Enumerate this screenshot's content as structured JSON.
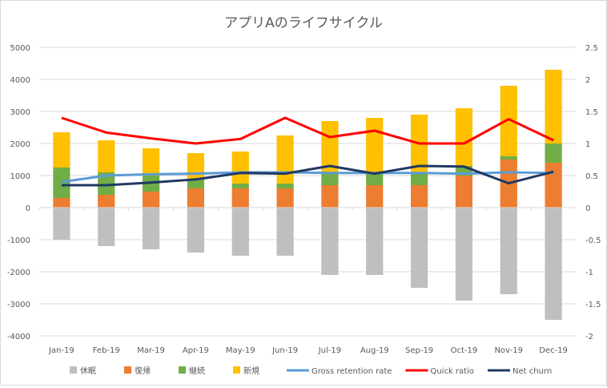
{
  "chart_data": {
    "type": "bar",
    "title": "アプリAのライフサイクル",
    "categories": [
      "Jan-19",
      "Feb-19",
      "Mar-19",
      "Apr-19",
      "May-19",
      "Jun-19",
      "Jul-19",
      "Aug-19",
      "Sep-19",
      "Oct-19",
      "Nov-19",
      "Dec-19"
    ],
    "ylim": [
      -4000,
      5000
    ],
    "yticks": [
      -4000,
      -3000,
      -2000,
      -1000,
      0,
      1000,
      2000,
      3000,
      4000,
      5000
    ],
    "y2lim": [
      -2,
      2.5
    ],
    "y2ticks": [
      "-2",
      "-1.5",
      "-1",
      "-0.5",
      "0",
      "0.5",
      "1",
      "1.5",
      "2",
      "2.5"
    ],
    "legend_position": "bottom",
    "bar_series": [
      {
        "name": "休眠",
        "color": "#bfbfbf",
        "stack": "neg",
        "values": [
          -1000,
          -1200,
          -1300,
          -1400,
          -1500,
          -1500,
          -2100,
          -2100,
          -2500,
          -2900,
          -2700,
          -3500
        ]
      },
      {
        "name": "復帰",
        "color": "#ed7d31",
        "stack": "pos",
        "values": [
          300,
          400,
          500,
          600,
          600,
          600,
          700,
          700,
          700,
          1000,
          1500,
          1400
        ]
      },
      {
        "name": "継続",
        "color": "#70ad47",
        "stack": "pos",
        "values": [
          950,
          700,
          500,
          300,
          150,
          150,
          400,
          400,
          400,
          300,
          100,
          600
        ]
      },
      {
        "name": "新規",
        "color": "#ffc000",
        "stack": "pos",
        "values": [
          1100,
          1000,
          850,
          800,
          1000,
          1500,
          1600,
          1700,
          1800,
          1800,
          2200,
          2300
        ]
      }
    ],
    "line_series": [
      {
        "name": "Gross retention rate",
        "color": "#5b9bd5",
        "values": [
          0.4,
          0.5,
          0.52,
          0.53,
          0.55,
          0.55,
          0.54,
          0.54,
          0.54,
          0.53,
          0.55,
          0.54
        ]
      },
      {
        "name": "Quick ratio",
        "color": "#ff0000",
        "values": [
          1.4,
          1.17,
          1.08,
          1.0,
          1.07,
          1.4,
          1.1,
          1.2,
          1.0,
          1.0,
          1.38,
          1.05
        ]
      },
      {
        "name": "Net churn",
        "color": "#203864",
        "values": [
          0.35,
          0.35,
          0.39,
          0.44,
          0.54,
          0.53,
          0.65,
          0.53,
          0.65,
          0.64,
          0.38,
          0.56
        ]
      }
    ]
  }
}
